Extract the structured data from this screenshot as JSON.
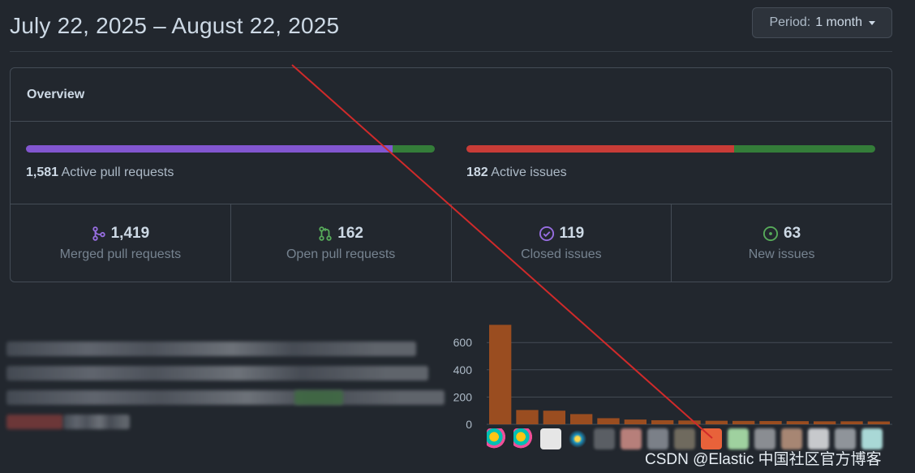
{
  "header": {
    "date_range": "July 22, 2025 – August 22, 2025",
    "period_prefix": "Period:",
    "period_value": "1 month"
  },
  "overview": {
    "title": "Overview",
    "pull_requests": {
      "count": "1,581",
      "label": "Active pull requests",
      "merged_fraction": 0.896,
      "open_fraction": 0.104,
      "merged_color": "#8256d0",
      "open_color": "#347d39"
    },
    "issues": {
      "count": "182",
      "label": "Active issues",
      "closed_fraction": 0.654,
      "new_fraction": 0.346,
      "closed_color": "#c93c37",
      "new_color": "#347d39"
    },
    "stats": [
      {
        "icon": "merge-icon",
        "value": "1,419",
        "label": "Merged pull requests",
        "color": "#986ee2"
      },
      {
        "icon": "pull-request-icon",
        "value": "162",
        "label": "Open pull requests",
        "color": "#57ab5a"
      },
      {
        "icon": "check-circle-icon",
        "value": "119",
        "label": "Closed issues",
        "color": "#986ee2"
      },
      {
        "icon": "issue-opened-icon",
        "value": "63",
        "label": "New issues",
        "color": "#57ab5a"
      }
    ]
  },
  "chart_data": {
    "type": "bar",
    "yticks": [
      0,
      200,
      400,
      600
    ],
    "ylim": [
      0,
      750
    ],
    "values": [
      730,
      105,
      100,
      75,
      45,
      35,
      30,
      28,
      26,
      25,
      24,
      23,
      22,
      22,
      21
    ],
    "bar_color": "#9a4d20",
    "grid": true
  },
  "watermark": "CSDN @Elastic 中国社区官方博客"
}
